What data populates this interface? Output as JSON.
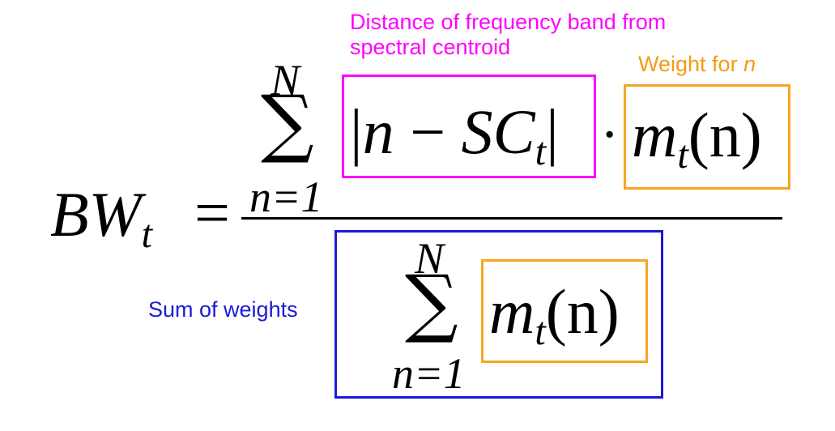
{
  "colors": {
    "distance_box": "#ff00ff",
    "weight_box": "#f5a623",
    "sum_box": "#1a1ad6"
  },
  "annotations": {
    "distance_line1": "Distance of frequency band from",
    "distance_line2": "spectral centroid",
    "weight_prefix": "Weight for ",
    "weight_var": "n",
    "sum_of_weights": "Sum of weights"
  },
  "formula": {
    "lhs_base": "BW",
    "lhs_sub": "t",
    "equals": "=",
    "num_upper": "N",
    "num_sigma": "∑",
    "num_lower": "n=1",
    "abs_open": "|",
    "abs_n": "n",
    "minus": "−",
    "sc": "SC",
    "sc_sub": "t",
    "abs_close": "|",
    "dot": "·",
    "m": "m",
    "m_sub": "t",
    "m_arg": "(n)",
    "den_upper": "N",
    "den_sigma": "∑",
    "den_lower": "n=1",
    "den_m": "m",
    "den_m_sub": "t",
    "den_m_arg": "(n)"
  }
}
